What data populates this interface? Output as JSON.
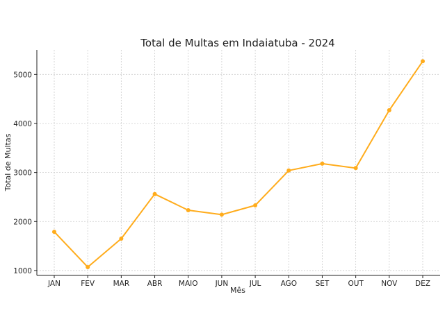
{
  "chart_data": {
    "type": "line",
    "title": "Total de Multas em Indaiatuba - 2024",
    "xlabel": "Mês",
    "ylabel": "Total de Multas",
    "categories": [
      "JAN",
      "FEV",
      "MAR",
      "ABR",
      "MAIO",
      "JUN",
      "JUL",
      "AGO",
      "SET",
      "OUT",
      "NOV",
      "DEZ"
    ],
    "series": [
      {
        "values": [
          1790,
          1070,
          1650,
          2560,
          2230,
          2140,
          2330,
          3040,
          3180,
          3090,
          4270,
          5270
        ]
      }
    ],
    "ylim": [
      900,
      5500
    ],
    "yticks": [
      1000,
      2000,
      3000,
      4000,
      5000
    ],
    "grid": true,
    "colors": {
      "line": "#ffac1c",
      "marker": "#ffac1c"
    }
  }
}
